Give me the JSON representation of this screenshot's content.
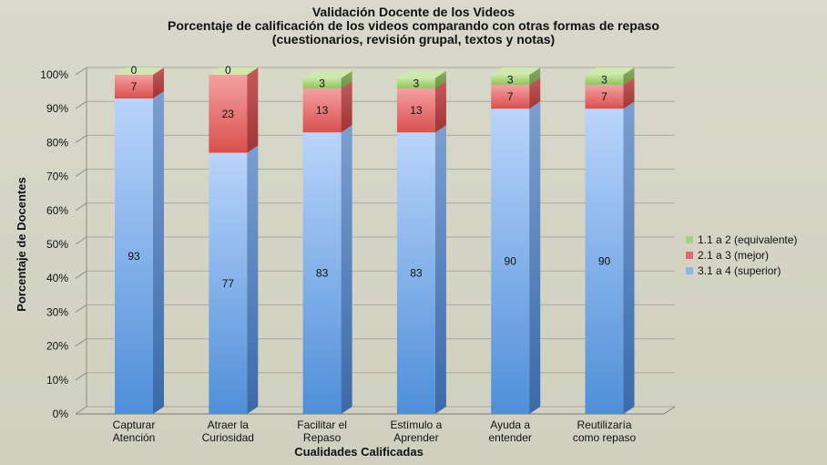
{
  "chart_data": {
    "type": "bar",
    "stacked": true,
    "title": [
      "Validación Docente de los Videos",
      "Porcentaje de calificación de los videos comparando con otras formas de repaso",
      "(cuestionarios, revisión grupal, textos y notas)"
    ],
    "xlabel": "Cualidades Calificadas",
    "ylabel": "Porcentaje de Docentes",
    "ylim": [
      0,
      100
    ],
    "yticks": [
      "0%",
      "10%",
      "20%",
      "30%",
      "40%",
      "50%",
      "60%",
      "70%",
      "80%",
      "90%",
      "100%"
    ],
    "categories": [
      [
        "Capturar",
        "Atención"
      ],
      [
        "Atraer la",
        "Curiosidad"
      ],
      [
        "Facilitar el",
        "Repaso"
      ],
      [
        "Estímulo a",
        "Aprender"
      ],
      [
        "Ayuda a",
        "entender"
      ],
      [
        "Reutilizaría",
        "como repaso"
      ]
    ],
    "series": [
      {
        "name": "3.1 a 4 (superior)",
        "values": [
          93,
          77,
          83,
          83,
          90,
          90
        ],
        "color": "#8fb4e8"
      },
      {
        "name": "2.1 a 3 (mejor)",
        "values": [
          7,
          23,
          13,
          13,
          7,
          7
        ],
        "color": "#e06a6a"
      },
      {
        "name": "1.1 a 2 (equivalente)",
        "values": [
          0,
          0,
          3,
          3,
          3,
          3
        ],
        "color": "#a6d07a"
      }
    ],
    "legend_position": "right",
    "grid": true
  }
}
